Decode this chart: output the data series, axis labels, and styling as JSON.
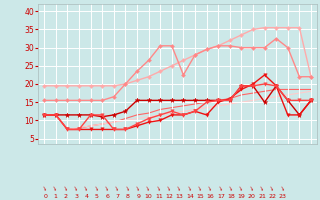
{
  "x": [
    0,
    1,
    2,
    3,
    4,
    5,
    6,
    7,
    8,
    9,
    10,
    11,
    12,
    13,
    14,
    15,
    16,
    17,
    18,
    19,
    20,
    21,
    22,
    23
  ],
  "lines": [
    {
      "y": [
        19.5,
        19.5,
        19.5,
        19.5,
        19.5,
        19.5,
        19.5,
        20.0,
        21.0,
        22.0,
        23.5,
        25.0,
        26.5,
        28.0,
        29.5,
        30.5,
        32.0,
        33.5,
        35.0,
        35.5,
        35.5,
        35.5,
        35.5,
        22.0
      ],
      "color": "#ffaaaa",
      "lw": 1.0,
      "marker": "D",
      "ms": 2.0,
      "zorder": 2
    },
    {
      "y": [
        15.5,
        15.5,
        15.5,
        15.5,
        15.5,
        15.5,
        16.5,
        20.0,
        23.5,
        26.5,
        30.5,
        30.5,
        22.5,
        28.0,
        29.5,
        30.5,
        30.5,
        30.0,
        30.0,
        30.0,
        32.5,
        30.0,
        22.0,
        22.0
      ],
      "color": "#ff8888",
      "lw": 1.0,
      "marker": "D",
      "ms": 2.0,
      "zorder": 3
    },
    {
      "y": [
        11.5,
        11.5,
        11.5,
        11.5,
        11.5,
        11.0,
        11.5,
        12.5,
        15.5,
        15.5,
        15.5,
        15.5,
        15.5,
        15.5,
        15.5,
        15.5,
        15.5,
        19.5,
        19.5,
        15.0,
        19.5,
        15.5,
        11.5,
        15.5
      ],
      "color": "#cc0000",
      "lw": 1.0,
      "marker": "*",
      "ms": 3.5,
      "zorder": 4
    },
    {
      "y": [
        11.5,
        11.5,
        7.5,
        7.5,
        7.5,
        7.5,
        7.5,
        7.5,
        8.5,
        9.5,
        10.0,
        11.5,
        11.5,
        12.5,
        11.5,
        15.0,
        16.0,
        18.5,
        20.0,
        22.5,
        19.5,
        11.5,
        11.5,
        15.5
      ],
      "color": "#ee1111",
      "lw": 1.0,
      "marker": "v",
      "ms": 2.5,
      "zorder": 5
    },
    {
      "y": [
        11.5,
        11.5,
        7.5,
        7.5,
        11.5,
        11.5,
        7.5,
        7.5,
        9.0,
        10.5,
        11.5,
        12.5,
        11.5,
        12.5,
        15.0,
        15.5,
        15.5,
        19.5,
        19.5,
        20.0,
        19.5,
        15.5,
        15.5,
        15.5
      ],
      "color": "#ff4444",
      "lw": 1.0,
      "marker": "v",
      "ms": 2.5,
      "zorder": 5
    },
    {
      "y": [
        11.5,
        11.5,
        7.5,
        7.8,
        8.5,
        9.0,
        9.5,
        10.5,
        11.5,
        12.0,
        13.0,
        13.5,
        14.0,
        14.5,
        15.0,
        15.5,
        16.0,
        17.0,
        17.5,
        18.0,
        18.5,
        18.5,
        18.5,
        18.5
      ],
      "color": "#ff6666",
      "lw": 0.8,
      "marker": null,
      "ms": 0,
      "zorder": 1
    },
    {
      "y": [
        11.5,
        11.5,
        7.5,
        8.0,
        8.5,
        9.0,
        9.5,
        10.0,
        10.5,
        11.0,
        11.5,
        12.0,
        12.5,
        13.0,
        13.5,
        14.0,
        14.5,
        15.0,
        15.5,
        16.0,
        16.5,
        17.0,
        17.5,
        18.0
      ],
      "color": "#ffcccc",
      "lw": 0.8,
      "marker": null,
      "ms": 0,
      "zorder": 1
    }
  ],
  "xlim": [
    -0.5,
    23.5
  ],
  "ylim": [
    3.5,
    42
  ],
  "yticks": [
    5,
    10,
    15,
    20,
    25,
    30,
    35,
    40
  ],
  "xticks": [
    0,
    1,
    2,
    3,
    4,
    5,
    6,
    7,
    8,
    9,
    10,
    11,
    12,
    13,
    14,
    15,
    16,
    17,
    18,
    19,
    20,
    21,
    22,
    23
  ],
  "bg_color": "#cce8e8",
  "grid_color": "#ffffff",
  "tick_color": "#cc0000",
  "label_color": "#cc0000"
}
